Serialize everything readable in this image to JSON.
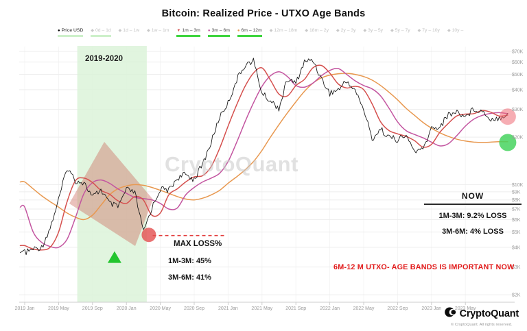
{
  "title": "Bitcoin: Realized Price - UTXO Age Bands",
  "watermark": "CryptoQuant",
  "footer": {
    "brand": "CryptoQuant",
    "copyright": "© CryptoQuant. All rights reserved."
  },
  "annotations": {
    "band_label": "2019-2020",
    "max_loss": {
      "title": "MAX LOSS%",
      "line1": "1M-3M: 45%",
      "line2": "3M-6M: 41%"
    },
    "now": {
      "title": "NOW",
      "line1": "1M-3M: 9.2% LOSS",
      "line2": "3M-6M: 4% LOSS"
    },
    "alert": "6M-12 M  UTXO- AGE BANDS IS IMPORTANT NOW"
  },
  "legend": {
    "items": [
      {
        "label": "Price USD",
        "marker": "●",
        "color": "#000000",
        "active": true,
        "underline": "pale"
      },
      {
        "label": "0d – 1d",
        "marker": "◆",
        "color": "#c9c9c9",
        "active": false,
        "underline": "pale"
      },
      {
        "label": "1d – 1w",
        "marker": "◆",
        "color": "#c9c9c9",
        "active": false,
        "underline": ""
      },
      {
        "label": "1w – 1m",
        "marker": "◆",
        "color": "#c9c9c9",
        "active": false,
        "underline": ""
      },
      {
        "label": "1m – 3m",
        "marker": "▼",
        "color": "#d5504e",
        "active": true,
        "underline": "bright"
      },
      {
        "label": "3m – 6m",
        "marker": "●",
        "color": "#c355a0",
        "active": true,
        "underline": "bright"
      },
      {
        "label": "6m – 12m",
        "marker": "●",
        "color": "#e8984f",
        "active": true,
        "underline": "bright"
      },
      {
        "label": "12m – 18m",
        "marker": "◆",
        "color": "#c9c9c9",
        "active": false,
        "underline": ""
      },
      {
        "label": "18m – 2y",
        "marker": "◆",
        "color": "#c9c9c9",
        "active": false,
        "underline": ""
      },
      {
        "label": "2y – 3y",
        "marker": "◆",
        "color": "#c9c9c9",
        "active": false,
        "underline": ""
      },
      {
        "label": "3y – 5y",
        "marker": "◆",
        "color": "#c9c9c9",
        "active": false,
        "underline": ""
      },
      {
        "label": "5y – 7y",
        "marker": "◆",
        "color": "#c9c9c9",
        "active": false,
        "underline": ""
      },
      {
        "label": "7y – 10y",
        "marker": "◆",
        "color": "#c9c9c9",
        "active": false,
        "underline": ""
      },
      {
        "label": "10y –",
        "marker": "◆",
        "color": "#c9c9c9",
        "active": false,
        "underline": ""
      }
    ]
  },
  "chart_data": {
    "type": "line",
    "title": "Bitcoin: Realized Price - UTXO Age Bands",
    "y_scale": "log",
    "units": "USD (thousands)",
    "ylim": [
      2000,
      80000
    ],
    "x_start": "2019-01",
    "x_end": "2023-10",
    "x_ticks": [
      {
        "label": "2019 Jan",
        "m": 0
      },
      {
        "label": "2019 May",
        "m": 4
      },
      {
        "label": "2019 Sep",
        "m": 8
      },
      {
        "label": "2020 Jan",
        "m": 12
      },
      {
        "label": "2020 May",
        "m": 16
      },
      {
        "label": "2020 Sep",
        "m": 20
      },
      {
        "label": "2021 Jan",
        "m": 24
      },
      {
        "label": "2021 May",
        "m": 28
      },
      {
        "label": "2021 Sep",
        "m": 32
      },
      {
        "label": "2022 Jan",
        "m": 36
      },
      {
        "label": "2022 May",
        "m": 40
      },
      {
        "label": "2022 Sep",
        "m": 44
      },
      {
        "label": "2023 Jan",
        "m": 48
      },
      {
        "label": "2023 May",
        "m": 52
      }
    ],
    "y_ticks": [
      {
        "label": "$70K",
        "v": 70
      },
      {
        "label": "$60K",
        "v": 60
      },
      {
        "label": "$50K",
        "v": 50
      },
      {
        "label": "$40K",
        "v": 40
      },
      {
        "label": "$30K",
        "v": 30
      },
      {
        "label": "$20K",
        "v": 20
      },
      {
        "label": "$10K",
        "v": 10
      },
      {
        "label": "$9K",
        "v": 9
      },
      {
        "label": "$8K",
        "v": 8
      },
      {
        "label": "$7K",
        "v": 7
      },
      {
        "label": "$6K",
        "v": 6
      },
      {
        "label": "$5K",
        "v": 5
      },
      {
        "label": "$4K",
        "v": 4
      },
      {
        "label": "$3K",
        "v": 3
      },
      {
        "label": "$2K",
        "v": 2
      }
    ],
    "series": [
      {
        "name": "Price USD",
        "color": "#1a1a1a",
        "style": "noisy",
        "width": 0.9,
        "values": [
          3.7,
          3.9,
          4.0,
          5.3,
          8.0,
          12.8,
          10.6,
          10.3,
          8.3,
          9.3,
          7.6,
          7.2,
          9.3,
          8.9,
          5.0,
          7.1,
          9.4,
          9.2,
          11.0,
          11.6,
          10.8,
          13.5,
          18.5,
          27.0,
          33.0,
          46.0,
          57.5,
          61.0,
          38.0,
          34.0,
          30.5,
          46.5,
          44.0,
          60.0,
          62.0,
          47.0,
          38.0,
          40.0,
          45.5,
          39.5,
          30.0,
          19.5,
          22.5,
          20.0,
          19.3,
          20.4,
          16.3,
          16.6,
          22.8,
          23.3,
          27.8,
          29.0,
          27.0,
          30.3,
          29.2,
          26.1,
          26.5,
          28.3
        ]
      },
      {
        "name": "1m – 3m",
        "color": "#d5504e",
        "style": "smooth",
        "width": 1.5,
        "values": [
          4.1,
          3.9,
          3.85,
          4.0,
          5.0,
          7.8,
          10.6,
          11.0,
          10.3,
          9.2,
          8.7,
          7.9,
          7.6,
          8.4,
          8.0,
          6.4,
          6.6,
          8.6,
          9.4,
          10.4,
          11.2,
          11.4,
          13.0,
          17.0,
          23.5,
          32.0,
          42.0,
          51.0,
          55.0,
          46.0,
          37.5,
          36.5,
          42.5,
          46.5,
          55.0,
          57.0,
          51.0,
          43.5,
          41.0,
          42.0,
          40.0,
          32.5,
          25.0,
          22.0,
          21.0,
          20.2,
          19.0,
          17.3,
          18.0,
          21.5,
          24.5,
          27.3,
          28.0,
          28.2,
          29.5,
          28.8,
          27.2,
          27.6
        ]
      },
      {
        "name": "3m – 6m",
        "color": "#c355a0",
        "style": "smooth",
        "width": 1.5,
        "values": [
          7.2,
          5.0,
          4.3,
          4.05,
          4.0,
          4.5,
          6.2,
          8.8,
          10.3,
          10.7,
          10.2,
          9.4,
          8.8,
          8.3,
          8.15,
          8.0,
          7.6,
          7.0,
          7.1,
          8.6,
          9.6,
          10.4,
          11.0,
          11.8,
          14.0,
          18.5,
          25.0,
          33.0,
          42.0,
          49.0,
          52.0,
          48.5,
          42.5,
          41.5,
          44.0,
          49.0,
          53.0,
          54.5,
          50.0,
          45.5,
          42.5,
          40.5,
          36.5,
          30.5,
          25.0,
          22.0,
          20.8,
          19.8,
          18.6,
          17.6,
          18.2,
          20.5,
          23.5,
          26.0,
          27.5,
          28.3,
          28.6,
          28.2
        ]
      },
      {
        "name": "6m – 12m",
        "color": "#e8984f",
        "style": "smooth",
        "width": 1.5,
        "values": [
          10.4,
          9.4,
          8.5,
          7.8,
          7.2,
          6.6,
          6.2,
          6.0,
          6.4,
          7.4,
          8.6,
          9.4,
          9.8,
          10.0,
          9.9,
          9.6,
          9.2,
          8.8,
          8.4,
          8.1,
          8.0,
          8.2,
          8.6,
          9.2,
          10.2,
          11.2,
          12.4,
          14.0,
          16.5,
          20.0,
          24.0,
          28.5,
          33.5,
          39.0,
          44.0,
          47.5,
          49.5,
          50.5,
          50.8,
          50.0,
          48.5,
          46.0,
          42.5,
          38.5,
          34.5,
          30.5,
          27.5,
          24.8,
          22.8,
          21.3,
          20.2,
          19.4,
          18.9,
          18.6,
          18.5,
          18.6,
          18.7,
          18.7
        ]
      }
    ],
    "highlight_band": {
      "label": "2019-2020",
      "start_m": 6.2,
      "end_m": 14.4,
      "color": "#d9f3d7"
    },
    "overlays": {
      "diamond": {
        "points": [
          [
            152,
            207
          ],
          [
            223,
            291
          ],
          [
            197,
            359
          ],
          [
            101,
            297
          ]
        ],
        "color": "rgba(202,100,88,0.40)"
      },
      "dashed_line": {
        "m0": 15.1,
        "m1": 23.8,
        "v": 4.75,
        "color": "#e23b3b"
      },
      "circles": [
        {
          "name": "max-loss-point",
          "m": 14.65,
          "v": 4.8,
          "r": 10.5,
          "color": "#e34f4f",
          "opacity": 0.8
        },
        {
          "name": "now-price-point",
          "m": 57,
          "v": 27.0,
          "r": 12,
          "color": "#ef6a74",
          "opacity": 0.55
        },
        {
          "name": "now-6m12m-point",
          "m": 57,
          "v": 18.5,
          "r": 12.5,
          "color": "#47d35f",
          "opacity": 0.85
        }
      ],
      "triangle": {
        "m": 10.6,
        "v": 3.45,
        "color": "#22c52e"
      }
    }
  }
}
